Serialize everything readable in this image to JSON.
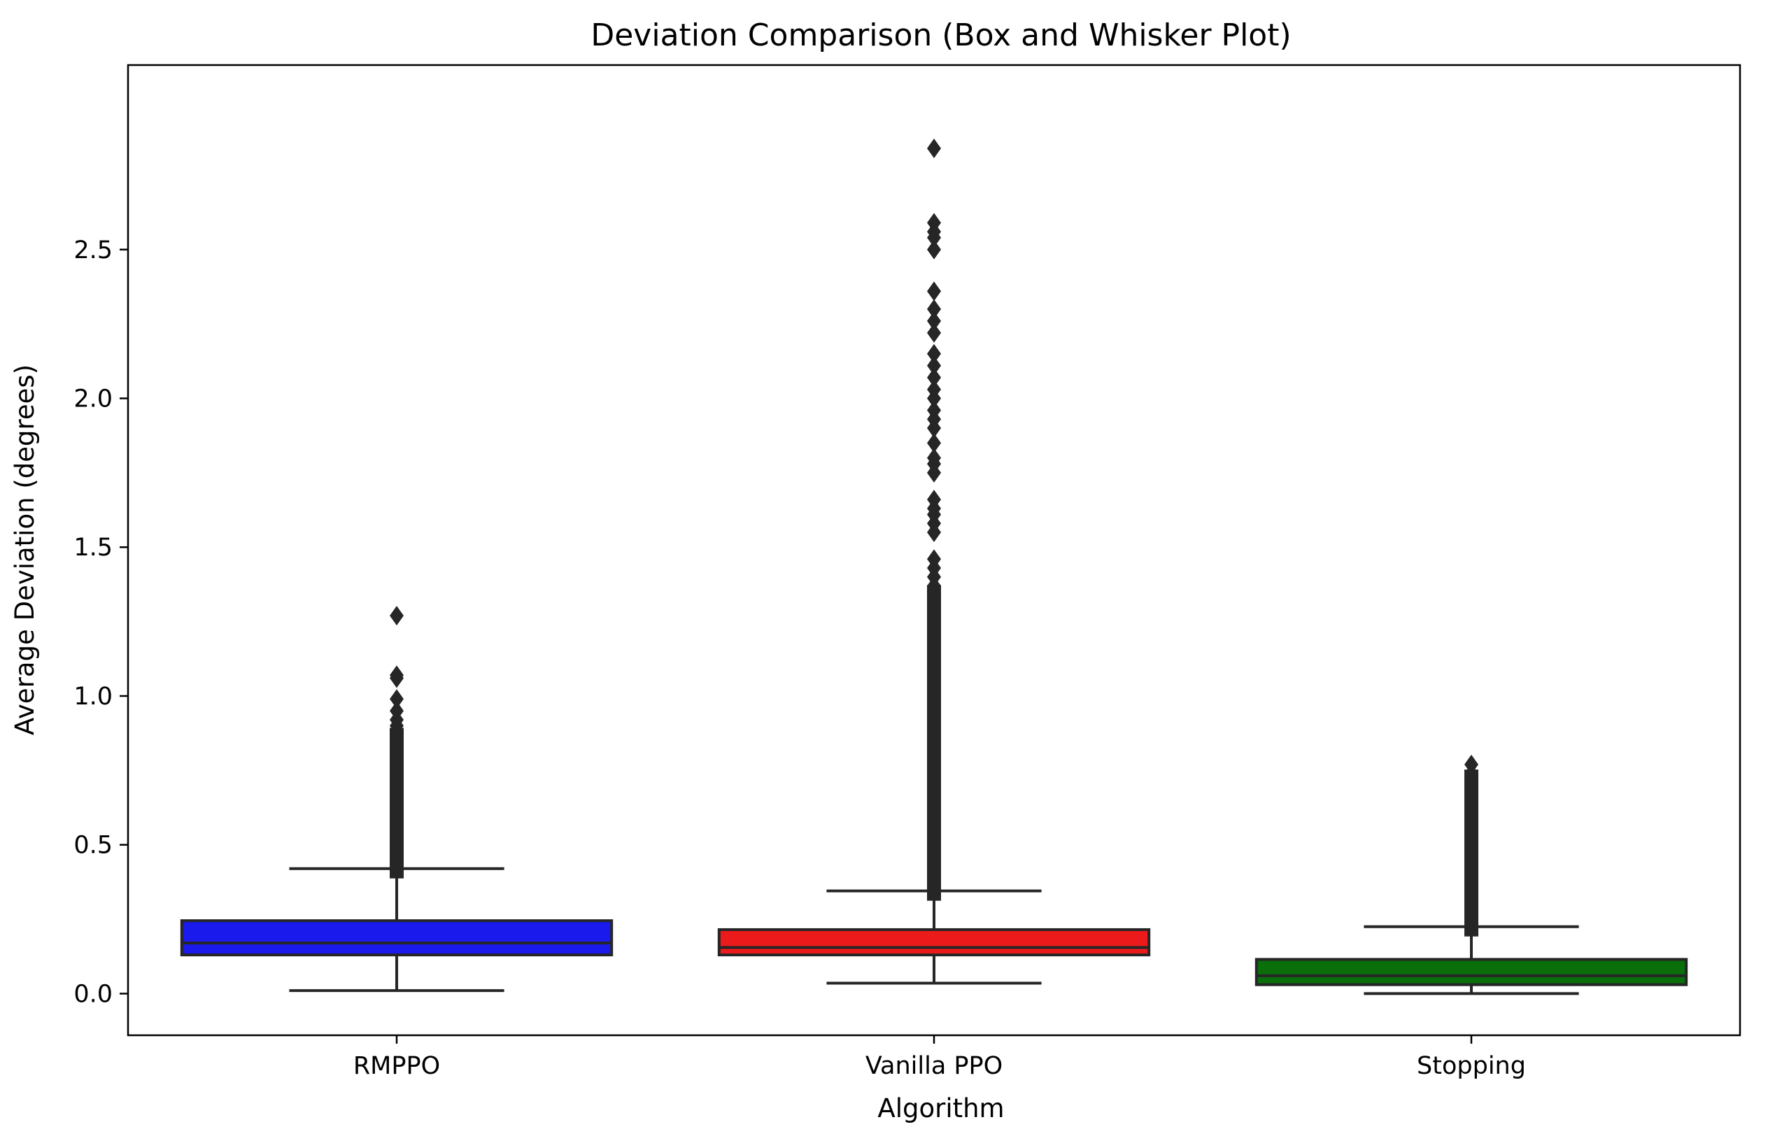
{
  "chart_data": {
    "type": "box",
    "title": "Deviation Comparison (Box and Whisker Plot)",
    "xlabel": "Algorithm",
    "ylabel": "Average Deviation (degrees)",
    "ylim": [
      -0.14,
      3.12
    ],
    "yticks": [
      0.0,
      0.5,
      1.0,
      1.5,
      2.0,
      2.5
    ],
    "ytick_labels": [
      "0.0",
      "0.5",
      "1.0",
      "1.5",
      "2.0",
      "2.5"
    ],
    "grid": false,
    "legend": "none",
    "series": [
      {
        "category": "RMPPO",
        "color": "#1a1aec",
        "whisker_low": 0.01,
        "q1": 0.13,
        "median": 0.17,
        "q3": 0.245,
        "whisker_high": 0.42,
        "outliers_dense_range": [
          0.42,
          0.86
        ],
        "outliers": [
          0.88,
          0.9,
          0.92,
          0.95,
          0.99,
          1.06,
          1.07,
          1.27
        ]
      },
      {
        "category": "Vanilla PPO",
        "color": "#ec1a1a",
        "whisker_low": 0.035,
        "q1": 0.13,
        "median": 0.155,
        "q3": 0.215,
        "whisker_high": 0.345,
        "outliers_dense_range": [
          0.345,
          1.34
        ],
        "outliers": [
          1.37,
          1.4,
          1.43,
          1.46,
          1.55,
          1.58,
          1.61,
          1.63,
          1.66,
          1.75,
          1.78,
          1.8,
          1.85,
          1.9,
          1.93,
          1.96,
          2.0,
          2.03,
          2.07,
          2.11,
          2.15,
          2.22,
          2.26,
          2.3,
          2.36,
          2.5,
          2.54,
          2.56,
          2.59,
          2.84
        ]
      },
      {
        "category": "Stopping",
        "color": "#0a6e0a",
        "whisker_low": 0.0,
        "q1": 0.03,
        "median": 0.06,
        "q3": 0.115,
        "whisker_high": 0.225,
        "outliers_dense_range": [
          0.225,
          0.72
        ],
        "outliers": [
          0.74,
          0.77
        ]
      }
    ]
  }
}
